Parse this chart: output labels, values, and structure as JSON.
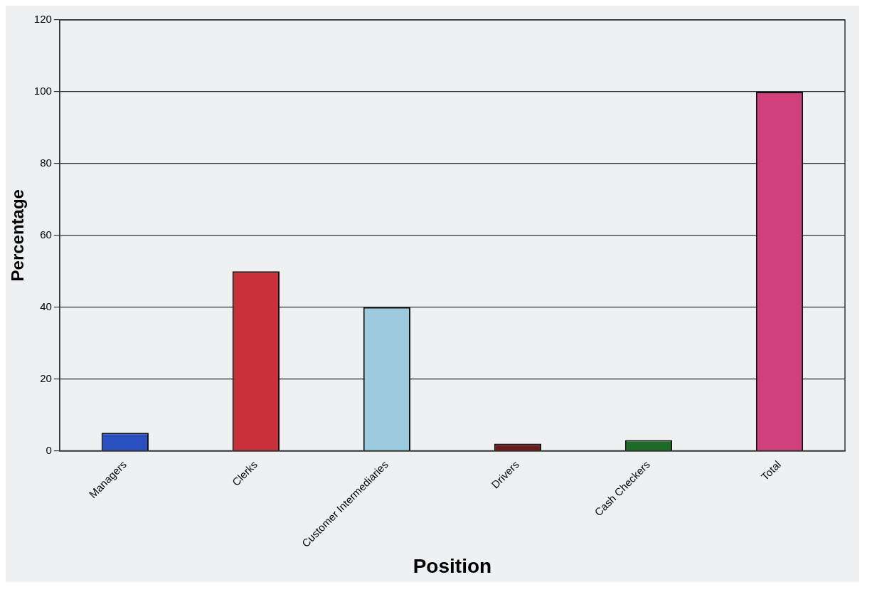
{
  "chart_data": {
    "type": "bar",
    "xlabel": "Position",
    "ylabel": "Percentage",
    "categories": [
      "Managers",
      "Clerks",
      "Customer Intermediaries",
      "Drivers",
      "Cash Checkers",
      "Total"
    ],
    "values": [
      5,
      50,
      40,
      2,
      3,
      100
    ],
    "colors": [
      "#2a4fc0",
      "#c8303a",
      "#9ccbe0",
      "#6b1a1a",
      "#1e6b28",
      "#d0407a"
    ],
    "ylim": [
      0,
      120
    ],
    "yticks": [
      0,
      20,
      40,
      60,
      80,
      100,
      120
    ],
    "grid": "y",
    "legend": false
  }
}
